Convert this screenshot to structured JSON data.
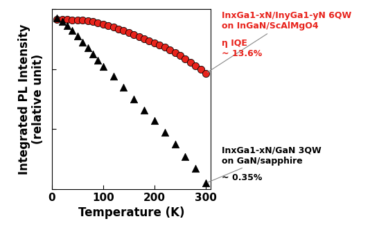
{
  "chart_data": {
    "type": "scatter",
    "x_label": "Temperature (K)",
    "y_label": "Integrated PL Intensity\n(relative unit)",
    "log": "y",
    "xlim": [
      0,
      310
    ],
    "xticks": [
      0,
      100,
      200,
      300
    ],
    "ylim": [
      1,
      1000
    ],
    "yticks": [
      1,
      10,
      100,
      1000
    ],
    "tick_labels": "x",
    "series": [
      {
        "name": "InxGa1-xN/InyGa1-yN 6QW\non InGaN/ScAlMgO4",
        "annotation": "η IQE\n~ 13.6%",
        "color": "#e8231c",
        "marker": "o",
        "x": [
          10,
          20,
          30,
          40,
          50,
          60,
          70,
          80,
          90,
          100,
          110,
          120,
          130,
          140,
          150,
          160,
          170,
          180,
          190,
          200,
          210,
          220,
          230,
          240,
          250,
          260,
          270,
          280,
          290,
          300
        ],
        "values": [
          676,
          676,
          670,
          665,
          660,
          650,
          640,
          620,
          590,
          560,
          530,
          500,
          470,
          440,
          410,
          380,
          350,
          320,
          295,
          270,
          250,
          230,
          210,
          190,
          170,
          150,
          130,
          115,
          100,
          85
        ]
      },
      {
        "name": "InxGa1-xN/GaN 3QW\non GaN/sapphire",
        "annotation": "~ 0.35%",
        "color": "#000000",
        "marker": "^",
        "x": [
          10,
          20,
          30,
          40,
          50,
          60,
          70,
          80,
          90,
          100,
          120,
          140,
          160,
          180,
          200,
          220,
          240,
          260,
          280,
          300
        ],
        "values": [
          708,
          630,
          525,
          437,
          355,
          282,
          224,
          178,
          141,
          112,
          76,
          50,
          32,
          21,
          14,
          8.9,
          5.6,
          3.5,
          2.2,
          1.26
        ]
      }
    ]
  }
}
